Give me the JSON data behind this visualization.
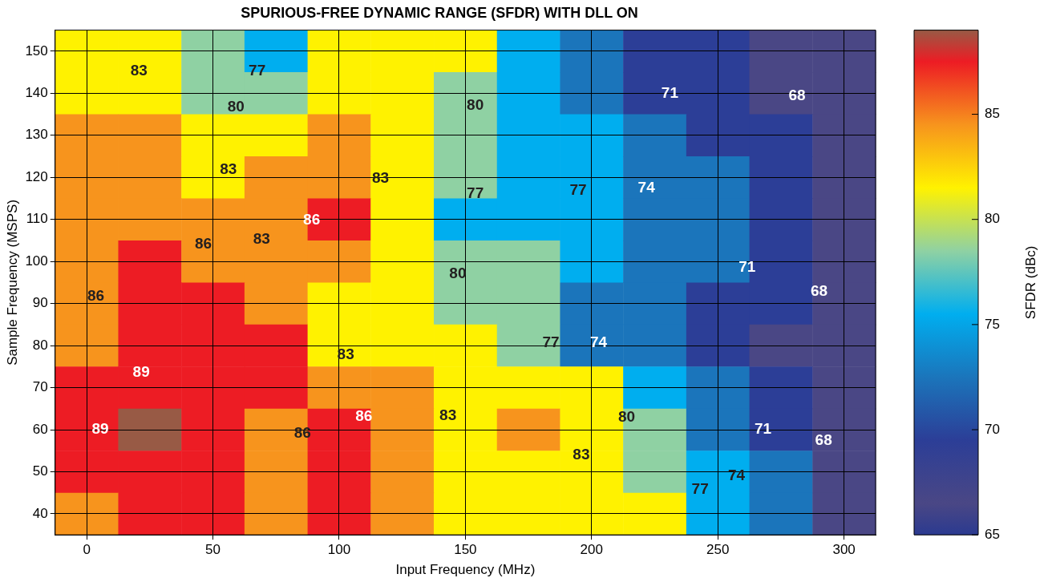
{
  "chart_data": {
    "type": "heatmap",
    "title": "SPURIOUS-FREE DYNAMIC RANGE (SFDR) WITH DLL ON",
    "xlabel": "Input Frequency (MHz)",
    "ylabel": "Sample Frequency (MSPS)",
    "clabel": "SFDR (dBc)",
    "categories": [
      "0",
      null,
      "50",
      null,
      "100",
      null,
      "150",
      null,
      "200",
      null,
      "250",
      null,
      "300"
    ],
    "y_categories": [
      "150",
      "140",
      "130",
      "120",
      "110",
      "100",
      "90",
      "80",
      "70",
      "60",
      "50",
      "40"
    ],
    "clim": [
      65,
      89
    ],
    "cticks": [
      65,
      70,
      75,
      80,
      85
    ],
    "grid": true,
    "cells": [
      [
        81.5,
        81.5,
        78.5,
        75.5,
        81.5,
        81.5,
        81.5,
        75.5,
        72.5,
        69.5,
        69.5,
        66.5,
        66.5
      ],
      [
        81.5,
        81.5,
        78.5,
        78.5,
        81.5,
        81.5,
        78.5,
        75.5,
        72.5,
        69.5,
        69.5,
        66.5,
        66.5
      ],
      [
        84.5,
        84.5,
        81.5,
        81.5,
        84.5,
        81.5,
        78.5,
        75.5,
        75.5,
        72.5,
        69.5,
        69.5,
        66.5
      ],
      [
        84.5,
        84.5,
        81.5,
        84.5,
        84.5,
        81.5,
        78.5,
        75.5,
        75.5,
        72.5,
        72.5,
        69.5,
        66.5
      ],
      [
        84.5,
        84.5,
        84.5,
        84.5,
        87.5,
        81.5,
        75.5,
        75.5,
        75.5,
        72.5,
        72.5,
        69.5,
        66.5
      ],
      [
        84.5,
        87.5,
        84.5,
        84.5,
        84.5,
        81.5,
        78.5,
        78.5,
        75.5,
        72.5,
        72.5,
        69.5,
        66.5
      ],
      [
        84.5,
        87.5,
        87.5,
        84.5,
        81.5,
        81.5,
        78.5,
        78.5,
        72.5,
        72.5,
        69.5,
        69.5,
        66.5
      ],
      [
        84.5,
        87.5,
        87.5,
        87.5,
        81.5,
        81.5,
        81.5,
        78.5,
        72.5,
        72.5,
        69.5,
        66.5,
        66.5
      ],
      [
        87.5,
        87.5,
        87.5,
        87.5,
        84.5,
        84.5,
        81.5,
        81.5,
        81.5,
        75.5,
        72.5,
        69.5,
        66.5
      ],
      [
        87.5,
        89,
        87.5,
        84.5,
        87.5,
        84.5,
        81.5,
        84.5,
        81.5,
        78.5,
        72.5,
        69.5,
        66.5
      ],
      [
        87.5,
        87.5,
        87.5,
        84.5,
        87.5,
        84.5,
        81.5,
        81.5,
        81.5,
        78.5,
        75.5,
        72.5,
        66.5
      ],
      [
        84.5,
        87.5,
        87.5,
        84.5,
        87.5,
        84.5,
        81.5,
        81.5,
        81.5,
        81.5,
        75.5,
        72.5,
        66.5
      ]
    ],
    "annotations": [
      "83",
      "77",
      "80",
      "80",
      "71",
      "68",
      "83",
      "83",
      "77",
      "77",
      "74",
      "86",
      "83",
      "86",
      "71",
      "80",
      "86",
      "68",
      "77",
      "74",
      "83",
      "89",
      "86",
      "83",
      "80",
      "89",
      "86",
      "71",
      "68",
      "83",
      "74",
      "77"
    ]
  }
}
